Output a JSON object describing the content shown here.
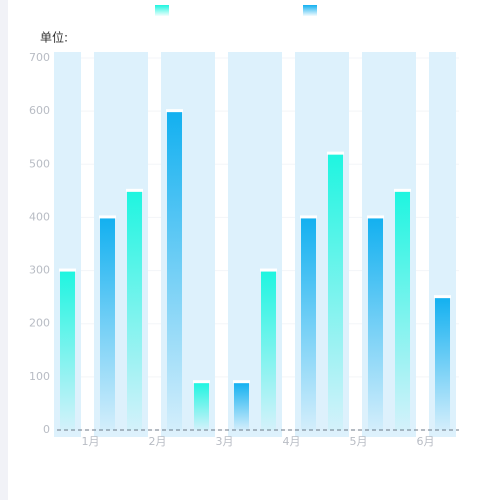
{
  "chart_data": {
    "type": "bar",
    "y_label": "单位:",
    "categories": [
      "1月",
      "2月",
      "3月",
      "4月",
      "5月",
      "6月"
    ],
    "series": [
      {
        "color": "#1ef5e0",
        "values": [
          300,
          450,
          90,
          300,
          520,
          450
        ]
      },
      {
        "color": "#12b0f0",
        "values": [
          400,
          600,
          90,
          400,
          400,
          250
        ]
      }
    ],
    "ylim": [
      0,
      700
    ],
    "yticks": [
      0,
      100,
      200,
      300,
      400,
      500,
      600,
      700
    ],
    "grid": true
  }
}
